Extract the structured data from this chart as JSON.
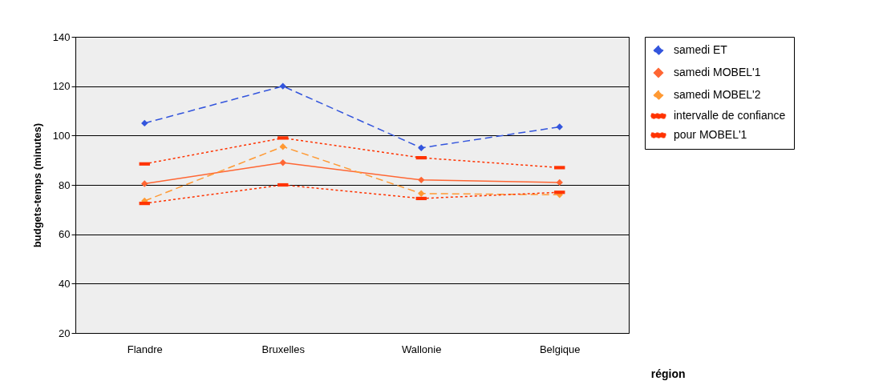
{
  "chart_data": {
    "type": "line",
    "xlabel": "région",
    "ylabel": "budgets-temps (minutes)",
    "categories": [
      "Flandre",
      "Bruxelles",
      "Wallonie",
      "Belgique"
    ],
    "series": [
      {
        "name": "samedi ET",
        "color": "#3355dd",
        "line_style": "dashed",
        "marker": "diamond",
        "values": [
          105,
          120,
          95,
          103.5
        ]
      },
      {
        "name": "samedi MOBEL'1",
        "color": "#ff6633",
        "line_style": "solid",
        "marker": "diamond",
        "values": [
          80.5,
          89,
          82,
          81
        ]
      },
      {
        "name": "samedi MOBEL'2",
        "color": "#ff9933",
        "line_style": "dashed",
        "marker": "diamond",
        "values": [
          73.5,
          95.5,
          76.5,
          76
        ]
      },
      {
        "name": "intervalle de confiance",
        "color": "#ff3300",
        "line_style": "dotted",
        "marker": "square",
        "values": [
          88.5,
          99,
          91,
          87
        ]
      },
      {
        "name": "pour MOBEL'1",
        "color": "#ff3300",
        "line_style": "dotted",
        "marker": "square",
        "values": [
          72.5,
          80,
          74.5,
          77
        ]
      }
    ],
    "ylim": [
      20,
      140
    ],
    "yticks": [
      20,
      40,
      60,
      80,
      100,
      120,
      140
    ],
    "grid": "y",
    "legend": "right"
  }
}
